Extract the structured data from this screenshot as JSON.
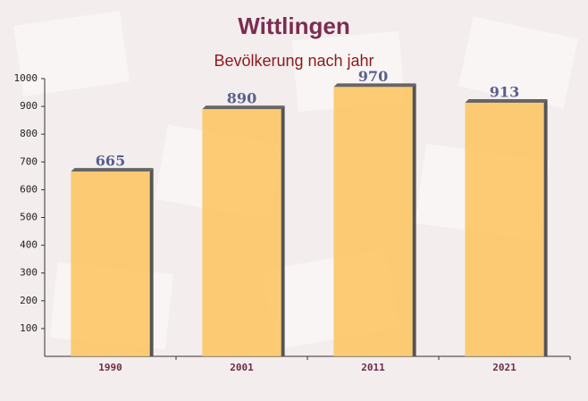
{
  "chart_data": {
    "type": "bar",
    "title": "Wittlingen",
    "subtitle": "Bevölkerung nach jahr",
    "categories": [
      "1990",
      "2001",
      "2011",
      "2021"
    ],
    "values": [
      665,
      890,
      970,
      913
    ],
    "color": "#fdc35c",
    "ylim": [
      0,
      1000
    ],
    "yticks": [
      100,
      200,
      300,
      400,
      500,
      600,
      700,
      800,
      900,
      1000
    ]
  }
}
